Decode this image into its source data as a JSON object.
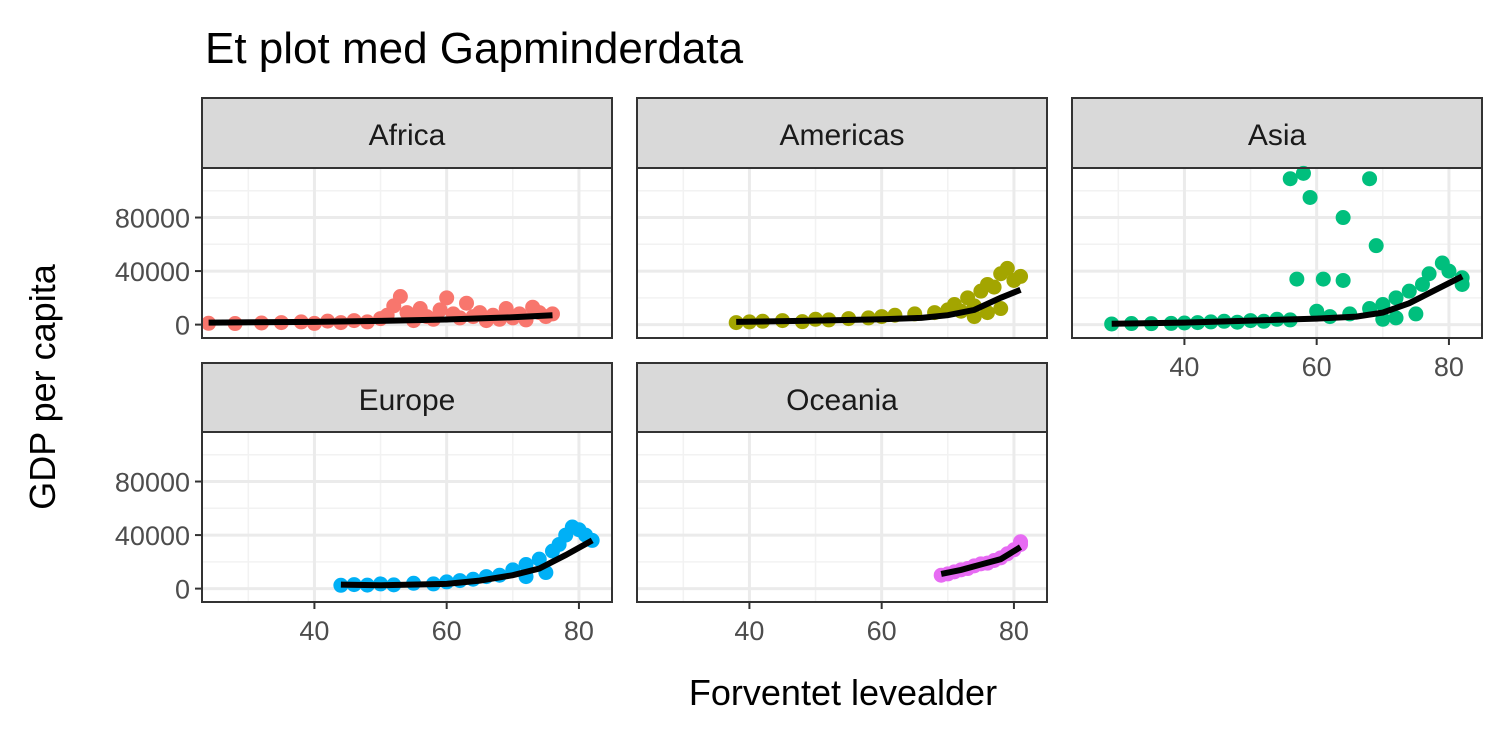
{
  "chart_data": {
    "type": "scatter",
    "title": "Et plot med Gapminderdata",
    "xlabel": "Forventet levealder",
    "ylabel": "GDP per capita",
    "xlim": [
      23,
      85
    ],
    "ylim": [
      -10000,
      117000
    ],
    "x_ticks": [
      40,
      60,
      80
    ],
    "y_ticks": [
      0,
      40000,
      80000
    ],
    "grid": true,
    "legend": "none",
    "facets": [
      {
        "name": "Africa",
        "color": "#F8766D",
        "points": [
          [
            24,
            1000
          ],
          [
            28,
            800
          ],
          [
            32,
            1200
          ],
          [
            35,
            1500
          ],
          [
            38,
            2000
          ],
          [
            40,
            900
          ],
          [
            42,
            2600
          ],
          [
            44,
            1500
          ],
          [
            46,
            3000
          ],
          [
            48,
            2000
          ],
          [
            50,
            4500
          ],
          [
            51,
            7000
          ],
          [
            52,
            14000
          ],
          [
            53,
            21000
          ],
          [
            54,
            9000
          ],
          [
            55,
            3000
          ],
          [
            56,
            12000
          ],
          [
            57,
            6000
          ],
          [
            58,
            4000
          ],
          [
            59,
            11000
          ],
          [
            60,
            20000
          ],
          [
            61,
            8000
          ],
          [
            62,
            5000
          ],
          [
            63,
            16000
          ],
          [
            64,
            6000
          ],
          [
            65,
            9000
          ],
          [
            66,
            3000
          ],
          [
            67,
            7000
          ],
          [
            68,
            4000
          ],
          [
            69,
            12000
          ],
          [
            70,
            5000
          ],
          [
            71,
            8000
          ],
          [
            72,
            3500
          ],
          [
            73,
            13000
          ],
          [
            74,
            9000
          ],
          [
            75,
            6000
          ],
          [
            76,
            8000
          ]
        ],
        "trend": [
          [
            24,
            1500
          ],
          [
            40,
            2000
          ],
          [
            50,
            2800
          ],
          [
            60,
            3800
          ],
          [
            70,
            5500
          ],
          [
            76,
            7000
          ]
        ]
      },
      {
        "name": "Americas",
        "color": "#A3A500",
        "points": [
          [
            38,
            1500
          ],
          [
            40,
            2000
          ],
          [
            42,
            2500
          ],
          [
            45,
            3000
          ],
          [
            48,
            2200
          ],
          [
            50,
            4000
          ],
          [
            52,
            3500
          ],
          [
            55,
            4500
          ],
          [
            58,
            5000
          ],
          [
            60,
            6000
          ],
          [
            62,
            7000
          ],
          [
            65,
            8000
          ],
          [
            68,
            9000
          ],
          [
            70,
            11000
          ],
          [
            71,
            15000
          ],
          [
            72,
            10000
          ],
          [
            73,
            20000
          ],
          [
            74,
            14000
          ],
          [
            75,
            25000
          ],
          [
            76,
            30000
          ],
          [
            77,
            28000
          ],
          [
            78,
            38000
          ],
          [
            79,
            42000
          ],
          [
            80,
            33000
          ],
          [
            81,
            36000
          ],
          [
            78,
            12000
          ],
          [
            76,
            9000
          ],
          [
            74,
            6000
          ]
        ],
        "trend": [
          [
            38,
            2000
          ],
          [
            50,
            3000
          ],
          [
            60,
            4000
          ],
          [
            66,
            5000
          ],
          [
            70,
            7000
          ],
          [
            74,
            11000
          ],
          [
            78,
            20000
          ],
          [
            81,
            26000
          ]
        ]
      },
      {
        "name": "Asia",
        "color": "#00BF7D",
        "points": [
          [
            29,
            500
          ],
          [
            32,
            800
          ],
          [
            35,
            700
          ],
          [
            38,
            900
          ],
          [
            40,
            1200
          ],
          [
            42,
            1500
          ],
          [
            44,
            2000
          ],
          [
            46,
            2500
          ],
          [
            48,
            1800
          ],
          [
            50,
            3000
          ],
          [
            52,
            2500
          ],
          [
            54,
            4000
          ],
          [
            56,
            3500
          ],
          [
            56,
            109000
          ],
          [
            58,
            113000
          ],
          [
            59,
            95000
          ],
          [
            64,
            80000
          ],
          [
            68,
            109000
          ],
          [
            69,
            59000
          ],
          [
            57,
            34000
          ],
          [
            61,
            34000
          ],
          [
            64,
            33000
          ],
          [
            60,
            10000
          ],
          [
            62,
            6000
          ],
          [
            65,
            8000
          ],
          [
            68,
            12000
          ],
          [
            70,
            15000
          ],
          [
            72,
            20000
          ],
          [
            74,
            25000
          ],
          [
            76,
            30000
          ],
          [
            77,
            38000
          ],
          [
            79,
            46000
          ],
          [
            80,
            40000
          ],
          [
            82,
            35000
          ],
          [
            82,
            30000
          ],
          [
            75,
            8000
          ],
          [
            72,
            5000
          ],
          [
            70,
            4000
          ]
        ],
        "trend": [
          [
            29,
            700
          ],
          [
            40,
            1500
          ],
          [
            50,
            3000
          ],
          [
            60,
            4500
          ],
          [
            66,
            6000
          ],
          [
            70,
            9000
          ],
          [
            74,
            16000
          ],
          [
            78,
            26000
          ],
          [
            82,
            36000
          ]
        ]
      },
      {
        "name": "Europe",
        "color": "#00B0F6",
        "points": [
          [
            44,
            2500
          ],
          [
            46,
            3000
          ],
          [
            48,
            2600
          ],
          [
            50,
            3500
          ],
          [
            52,
            2800
          ],
          [
            55,
            4000
          ],
          [
            58,
            3500
          ],
          [
            60,
            5000
          ],
          [
            62,
            6000
          ],
          [
            64,
            7000
          ],
          [
            66,
            9000
          ],
          [
            68,
            10000
          ],
          [
            70,
            14000
          ],
          [
            72,
            18000
          ],
          [
            74,
            22000
          ],
          [
            76,
            28000
          ],
          [
            77,
            33000
          ],
          [
            78,
            40000
          ],
          [
            79,
            46000
          ],
          [
            80,
            44000
          ],
          [
            81,
            40000
          ],
          [
            82,
            36000
          ],
          [
            75,
            12000
          ],
          [
            72,
            9000
          ]
        ],
        "trend": [
          [
            44,
            3000
          ],
          [
            50,
            2500
          ],
          [
            60,
            3500
          ],
          [
            65,
            6000
          ],
          [
            70,
            10000
          ],
          [
            74,
            15000
          ],
          [
            78,
            25000
          ],
          [
            82,
            36000
          ]
        ]
      },
      {
        "name": "Oceania",
        "color": "#E76BF3",
        "points": [
          [
            69,
            10000
          ],
          [
            70,
            11000
          ],
          [
            71,
            12500
          ],
          [
            72,
            14000
          ],
          [
            73,
            15000
          ],
          [
            74,
            17000
          ],
          [
            75,
            18500
          ],
          [
            76,
            19000
          ],
          [
            77,
            21000
          ],
          [
            78,
            23000
          ],
          [
            79,
            26000
          ],
          [
            80,
            29000
          ],
          [
            81,
            33000
          ],
          [
            81,
            35000
          ]
        ],
        "trend": [
          [
            69,
            11000
          ],
          [
            72,
            14000
          ],
          [
            75,
            18000
          ],
          [
            78,
            22000
          ],
          [
            81,
            31000
          ]
        ]
      }
    ]
  }
}
